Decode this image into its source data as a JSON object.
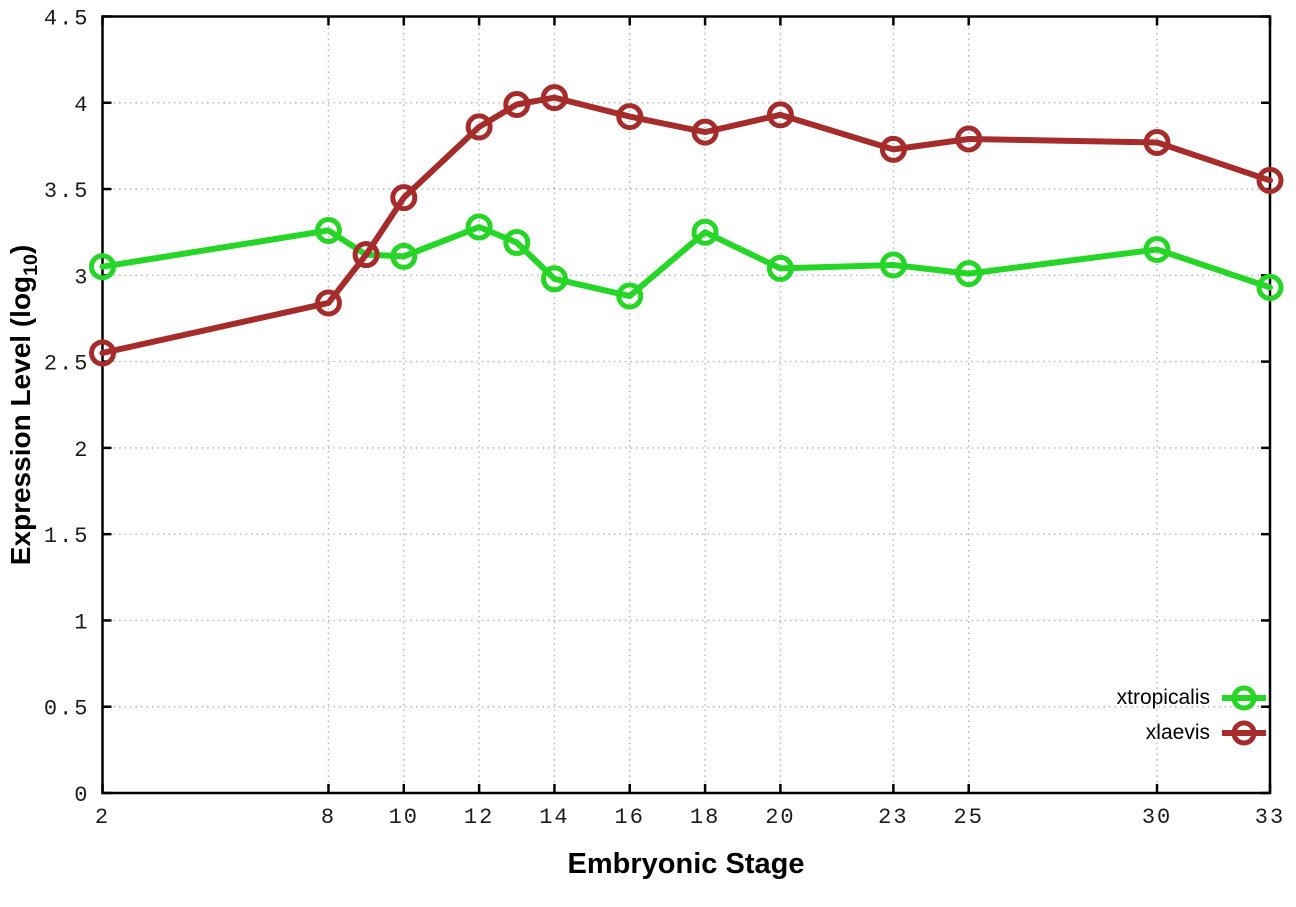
{
  "chart_data": {
    "type": "line",
    "title": "",
    "xlabel": "Embryonic Stage",
    "ylabel": "Expression Level (log10)",
    "ylabel_prefix": "Expression Level (log",
    "ylabel_sub": "10",
    "ylabel_suffix": ")",
    "xlim": [
      2,
      33
    ],
    "ylim": [
      0,
      4.5
    ],
    "xticks": [
      2,
      8,
      10,
      12,
      14,
      16,
      18,
      20,
      23,
      25,
      30,
      33
    ],
    "yticks": [
      0,
      0.5,
      1,
      1.5,
      2,
      2.5,
      3,
      3.5,
      4,
      4.5
    ],
    "grid": true,
    "legend_position": "bottom-right-inside",
    "x": [
      2,
      8,
      9,
      10,
      12,
      13,
      14,
      16,
      18,
      20,
      23,
      25,
      30,
      33
    ],
    "series": [
      {
        "name": "xtropicalis",
        "color": "#26d626",
        "values": [
          3.05,
          3.26,
          3.12,
          3.11,
          3.28,
          3.19,
          2.98,
          2.88,
          3.25,
          3.04,
          3.06,
          3.01,
          3.15,
          2.93
        ]
      },
      {
        "name": "xlaevis",
        "color": "#a62c2c",
        "values": [
          2.55,
          2.84,
          3.12,
          3.45,
          3.86,
          3.99,
          4.03,
          3.92,
          3.83,
          3.93,
          3.73,
          3.79,
          3.77,
          3.55
        ]
      }
    ],
    "colors": {
      "axis": "#000000",
      "grid": "#b5b5b5",
      "tick_text": "#1c1c1c"
    }
  }
}
